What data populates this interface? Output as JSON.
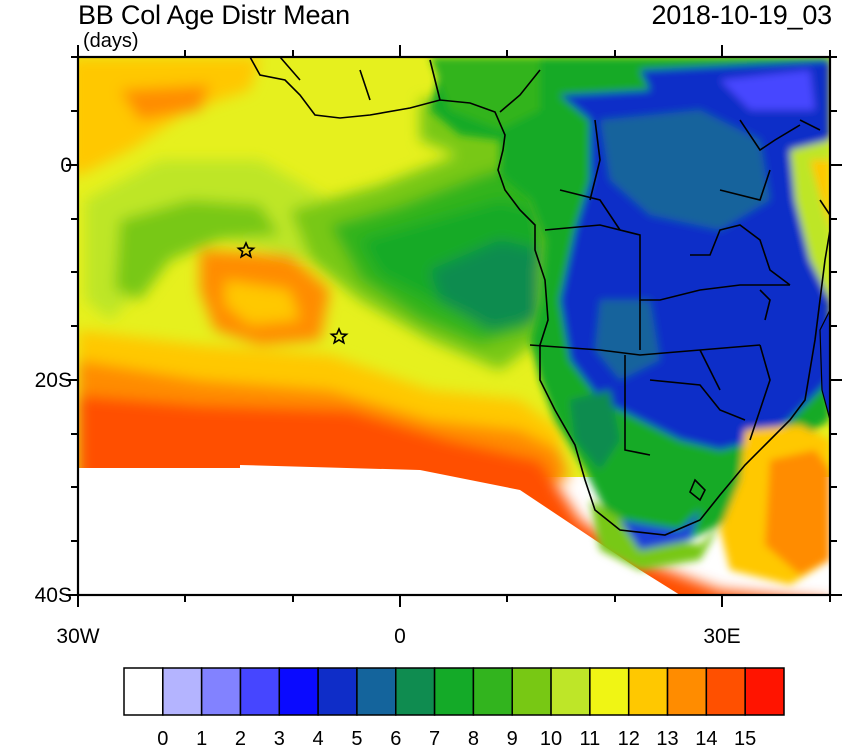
{
  "header": {
    "title": "BB Col Age Distr Mean",
    "units": "(days)",
    "timestamp": "2018-10-19_03"
  },
  "map": {
    "lat_labels": [
      "0",
      "20S",
      "40S"
    ],
    "lon_labels": [
      "30W",
      "0",
      "30E"
    ],
    "markers": [
      "star",
      "star"
    ],
    "palette": {
      "sea_background": "#d8e84a",
      "southern_ocean_high": "#ff4c00",
      "continent_low": "#1f40d8"
    }
  },
  "legend": {
    "labels": [
      "0",
      "1",
      "2",
      "3",
      "4",
      "5",
      "6",
      "7",
      "8",
      "9",
      "10",
      "11",
      "12",
      "13",
      "14",
      "15"
    ],
    "colors": [
      "#ffffff",
      "#b4b4ff",
      "#8282ff",
      "#4646ff",
      "#0a0aff",
      "#0f2dc8",
      "#14649c",
      "#0f8c50",
      "#14aa28",
      "#32b41e",
      "#78c814",
      "#bee628",
      "#f0f514",
      "#ffc800",
      "#ff8c00",
      "#ff5000",
      "#ff1400"
    ]
  }
}
